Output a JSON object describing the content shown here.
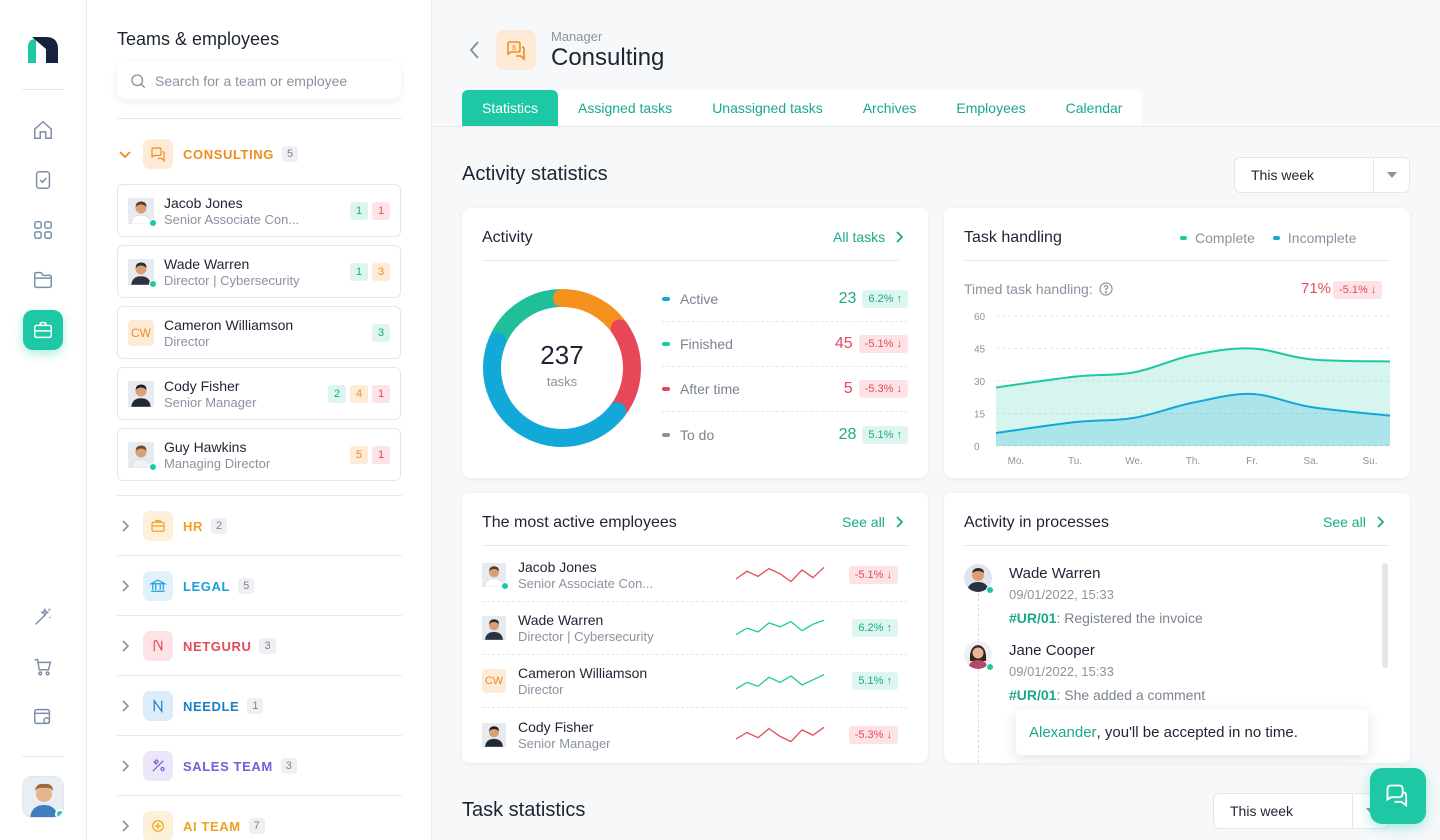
{
  "rail": {
    "items": [
      {
        "icon": "home-icon"
      },
      {
        "icon": "task-check-icon"
      },
      {
        "icon": "grid-icon"
      },
      {
        "icon": "folder-icon"
      },
      {
        "icon": "briefcase-icon",
        "active": true
      }
    ],
    "bottom": [
      {
        "icon": "magic-wand-icon"
      },
      {
        "icon": "cart-icon"
      },
      {
        "icon": "settings-window-icon"
      }
    ]
  },
  "sidebar": {
    "title": "Teams & employees",
    "search_placeholder": "Search for a team or employee",
    "expanded_team": {
      "name": "CONSULTING",
      "count": "5",
      "color": "#f08c1e"
    },
    "employees": [
      {
        "name": "Jacob Jones",
        "role": "Senior Associate Con...",
        "badges": [
          {
            "v": "1",
            "c": "g"
          },
          {
            "v": "1",
            "c": "r"
          }
        ],
        "online": true
      },
      {
        "name": "Wade Warren",
        "role": "Director | Cybersecurity",
        "badges": [
          {
            "v": "1",
            "c": "g"
          },
          {
            "v": "3",
            "c": "o"
          }
        ],
        "online": true
      },
      {
        "name": "Cameron Williamson",
        "role": "Director",
        "initials": "CW",
        "badges": [
          {
            "v": "3",
            "c": "g"
          }
        ],
        "online": false
      },
      {
        "name": "Cody Fisher",
        "role": "Senior Manager",
        "badges": [
          {
            "v": "2",
            "c": "g"
          },
          {
            "v": "4",
            "c": "o"
          },
          {
            "v": "1",
            "c": "r"
          }
        ],
        "online": false
      },
      {
        "name": "Guy Hawkins",
        "role": "Managing Director",
        "badges": [
          {
            "v": "5",
            "c": "o"
          },
          {
            "v": "1",
            "c": "r"
          }
        ],
        "online": true
      }
    ],
    "teams": [
      {
        "name": "HR",
        "count": "2",
        "color": "#f0a020",
        "bg": "#fdf0d8"
      },
      {
        "name": "LEGAL",
        "count": "5",
        "color": "#1a9fd6",
        "bg": "#dff1fb"
      },
      {
        "name": "NETGURU",
        "count": "3",
        "color": "#e24b5a",
        "bg": "#fde3e5"
      },
      {
        "name": "NEEDLE",
        "count": "1",
        "color": "#1a7fc4",
        "bg": "#dcecf8"
      },
      {
        "name": "SALES TEAM",
        "count": "3",
        "color": "#7a5ad6",
        "bg": "#ece6fa"
      },
      {
        "name": "AI TEAM",
        "count": "7",
        "color": "#f0a020",
        "bg": "#fdf0d8"
      }
    ]
  },
  "header": {
    "subtitle": "Manager",
    "title": "Consulting",
    "tabs": [
      "Statistics",
      "Assigned tasks",
      "Unassigned tasks",
      "Archives",
      "Employees",
      "Calendar"
    ]
  },
  "activity_stats": {
    "title": "Activity statistics",
    "period": "This week"
  },
  "activity": {
    "title": "Activity",
    "link": "All tasks",
    "total": "237",
    "total_label": "tasks",
    "rows": [
      {
        "label": "Active",
        "value": "23",
        "change": "6.2%",
        "dir": "up",
        "color": "#1ec8a5"
      },
      {
        "label": "Finished",
        "value": "45",
        "change": "-5.1%",
        "dir": "down",
        "color": "#e24b5a"
      },
      {
        "label": "After time",
        "value": "5",
        "change": "-5.3%",
        "dir": "down",
        "color": "#e24b5a"
      },
      {
        "label": "To do",
        "value": "28",
        "change": "5.1%",
        "dir": "up",
        "color": "#1ec8a5"
      }
    ],
    "segments": [
      {
        "name": "green",
        "value": 28,
        "color": "#1fbf9a"
      },
      {
        "name": "orange",
        "value": 23,
        "color": "#f5921e"
      },
      {
        "name": "red",
        "value": 30,
        "color": "#e8475a"
      },
      {
        "name": "blue",
        "value": 68,
        "color": "#12a8d8"
      }
    ]
  },
  "task_handling": {
    "title": "Task handling",
    "legend": [
      {
        "label": "Complete",
        "color": "#1ec8a5"
      },
      {
        "label": "Incomplete",
        "color": "#12a8d8"
      }
    ],
    "timed_label": "Timed task handling:",
    "timed_value": "71%",
    "timed_change": "-5.1%"
  },
  "chart_data": {
    "type": "area",
    "categories": [
      "Mo.",
      "Tu.",
      "We.",
      "Th.",
      "Fr.",
      "Sa.",
      "Su."
    ],
    "ylim": [
      0,
      60
    ],
    "yticks": [
      "60",
      "45",
      "30",
      "15",
      "0"
    ],
    "series": [
      {
        "name": "Complete",
        "values": [
          27,
          32,
          34,
          42,
          45,
          40,
          39
        ],
        "color": "#1ec8a5"
      },
      {
        "name": "Incomplete",
        "values": [
          6,
          11,
          13,
          20,
          24,
          18,
          14
        ],
        "color": "#12a8d8"
      }
    ]
  },
  "most_active": {
    "title": "The most active employees",
    "link": "See all",
    "rows": [
      {
        "name": "Jacob Jones",
        "role": "Senior Associate Con...",
        "change": "-5.1%",
        "dir": "down",
        "online": true
      },
      {
        "name": "Wade Warren",
        "role": "Director | Cybersecurity",
        "change": "6.2%",
        "dir": "up",
        "online": false
      },
      {
        "name": "Cameron Williamson",
        "role": "Director",
        "initials": "CW",
        "change": "5.1%",
        "dir": "up",
        "online": false
      },
      {
        "name": "Cody Fisher",
        "role": "Senior Manager",
        "change": "-5.3%",
        "dir": "down",
        "online": false
      }
    ]
  },
  "processes": {
    "title": "Activity in processes",
    "link": "See all",
    "items": [
      {
        "name": "Wade Warren",
        "time": "09/01/2022, 15:33",
        "code": "#UR/01",
        "text": ": Registered the invoice"
      },
      {
        "name": "Jane Cooper",
        "time": "09/01/2022, 15:33",
        "code": "#UR/01",
        "text": ": She added a comment"
      }
    ],
    "comment_name": "Alexander",
    "comment_text": ", you'll be accepted in no time."
  },
  "task_stats": {
    "title": "Task statistics",
    "period": "This week"
  }
}
